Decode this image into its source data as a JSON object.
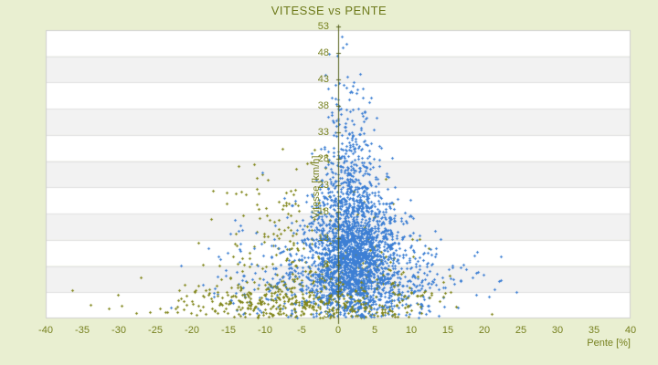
{
  "chart_data": {
    "type": "scatter",
    "title": "VITESSE vs PENTE",
    "xlabel": "Pente [%]",
    "ylabel": "Vitesse [km/h]",
    "xlim": [
      -40,
      40
    ],
    "x_ticks": [
      -40,
      -35,
      -30,
      -25,
      -20,
      -15,
      -10,
      -5,
      0,
      5,
      10,
      15,
      20,
      25,
      30,
      35,
      40
    ],
    "y_ticks": [
      53,
      48,
      43,
      38,
      33,
      28,
      23,
      18,
      13,
      8,
      3
    ],
    "y_axis_bottom_value": 3,
    "y_axis_top_value": 53,
    "grid": "horizontal-bands",
    "legend": "none",
    "series": [
      {
        "name": "vitesse-points-blue",
        "marker": "plus",
        "color": "#3d7fd4",
        "count": 2960,
        "clusters": [
          {
            "n": 1800,
            "cx": 2.0,
            "sx": 3.2,
            "cy": 14.0,
            "sy": 6.0
          },
          {
            "n": 500,
            "cx": 1.5,
            "sx": 1.8,
            "cy": 24.0,
            "sy": 11.0
          },
          {
            "n": 600,
            "cx": 0.0,
            "sx": 7.5,
            "cy": 10.0,
            "sy": 4.5
          },
          {
            "n": 60,
            "cx": 13.0,
            "sx": 4.0,
            "cy": 9.0,
            "sy": 3.0
          }
        ]
      },
      {
        "name": "vitesse-points-olive",
        "marker": "diamond",
        "color": "#82871c",
        "count": 800,
        "clusters": [
          {
            "n": 220,
            "cx": -6.0,
            "sx": 5.0,
            "cy": 14.0,
            "sy": 8.0,
            "ymax": 34
          },
          {
            "n": 130,
            "cx": 2.0,
            "sx": 4.5,
            "cy": 10.0,
            "sy": 5.0
          },
          {
            "n": 450,
            "cx": -5.0,
            "sx": 9.0,
            "cy": 5.5,
            "sy": 2.2,
            "ymax": 12
          }
        ]
      }
    ]
  },
  "colors": {
    "page_background": "#e9efd1",
    "band_light": "#ffffff",
    "band_dark": "#f2f2f2",
    "band_separator": "#e0e0e0",
    "plot_border": "#cfcfcf",
    "zero_axis_line": "#55611a",
    "label_text": "#76801e",
    "title_text": "#6e7a1b",
    "series_blue": "#3d7fd4",
    "series_olive": "#82871c"
  },
  "layout_values": {
    "band_count": 11
  }
}
